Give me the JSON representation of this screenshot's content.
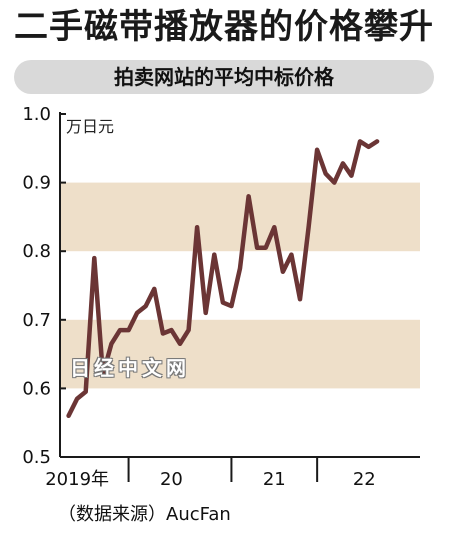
{
  "title": "二手磁带播放器的价格攀升",
  "subtitle": "拍卖网站的平均中标价格",
  "watermark": "日经中文网",
  "source": "（数据来源）AucFan",
  "colors": {
    "line": "#6b3535",
    "band": "#eedfc9",
    "axis": "#1a1a1a",
    "pill": "#d9d9d9"
  },
  "chart_data": {
    "type": "line",
    "ylabel": "万日元",
    "ylim": [
      0.5,
      1.0
    ],
    "yticks": [
      0.5,
      0.6,
      0.7,
      0.8,
      0.9,
      1.0
    ],
    "ytick_labels": [
      "0.5",
      "0.6",
      "0.7",
      "0.8",
      "0.9",
      "1.0"
    ],
    "bands": [
      [
        0.6,
        0.7
      ],
      [
        0.8,
        0.9
      ]
    ],
    "xlim": [
      0,
      42
    ],
    "x_tick_labels": [
      {
        "label": "2019年",
        "x": 2
      },
      {
        "label": "20",
        "x": 13
      },
      {
        "label": "21",
        "x": 25
      },
      {
        "label": "22",
        "x": 35.5
      }
    ],
    "x_year_ticks": [
      8,
      20,
      30
    ],
    "series": [
      {
        "values": [
          0.56,
          0.585,
          0.595,
          0.79,
          0.62,
          0.665,
          0.685,
          0.685,
          0.71,
          0.72,
          0.745,
          0.68,
          0.685,
          0.665,
          0.685,
          0.835,
          0.71,
          0.795,
          0.725,
          0.72,
          0.775,
          0.88,
          0.805,
          0.805,
          0.835,
          0.77,
          0.795,
          0.73,
          0.835,
          0.948,
          0.913,
          0.9,
          0.928,
          0.91,
          0.96,
          0.952,
          0.96
        ],
        "x_start": 1
      }
    ]
  }
}
